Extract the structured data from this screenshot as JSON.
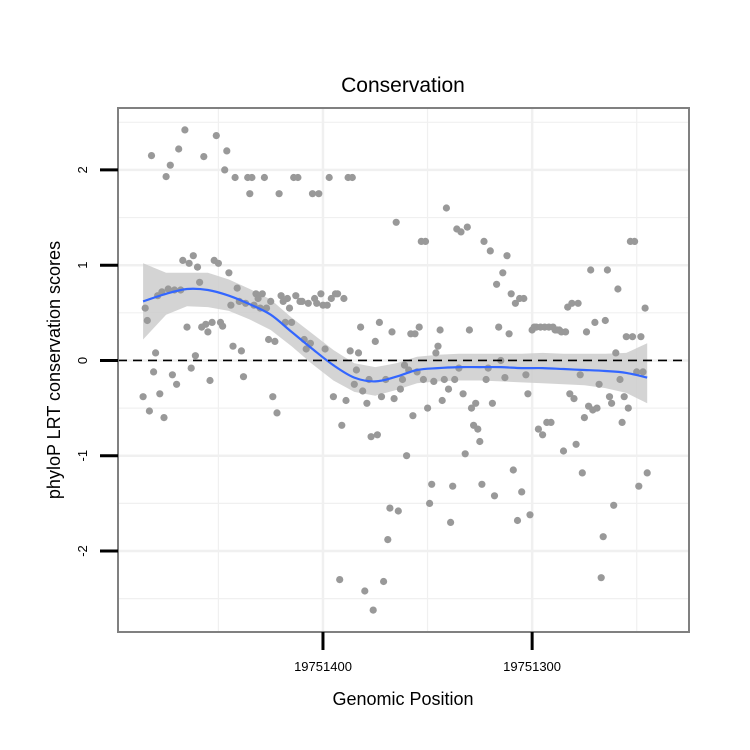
{
  "chart_data": {
    "type": "scatter",
    "title": "Conservation",
    "xlabel": "Genomic Position",
    "ylabel": "phyloP LRT conservation scores",
    "x_reversed": true,
    "xlim": [
      19751498,
      19751225
    ],
    "ylim": [
      -2.85,
      2.65
    ],
    "x_ticks": [
      19751400,
      19751300
    ],
    "x_tick_labels": [
      "19751400",
      "19751300"
    ],
    "y_ticks": [
      -2,
      -1,
      0,
      1,
      2
    ],
    "y_tick_labels": [
      "-2",
      "-1",
      "0",
      "1",
      "2"
    ],
    "grid": true,
    "legend": "none",
    "reference_line": {
      "y": 0,
      "style": "dashed"
    },
    "colors": {
      "points": "#999999",
      "smooth_line": "#3366ff",
      "ribbon": "#cccccc",
      "panel_border": "#808080",
      "grid": "#f0f0f0"
    },
    "series": [
      {
        "type": "points",
        "points": [
          [
            19751486,
            -0.38
          ],
          [
            19751485,
            0.55
          ],
          [
            19751484,
            0.42
          ],
          [
            19751483,
            -0.53
          ],
          [
            19751482,
            2.15
          ],
          [
            19751481,
            -0.12
          ],
          [
            19751480,
            0.08
          ],
          [
            19751479,
            0.68
          ],
          [
            19751478,
            -0.35
          ],
          [
            19751477,
            0.72
          ],
          [
            19751476,
            -0.6
          ],
          [
            19751475,
            1.93
          ],
          [
            19751474,
            0.75
          ],
          [
            19751473,
            2.05
          ],
          [
            19751472,
            -0.15
          ],
          [
            19751471,
            0.74
          ],
          [
            19751470,
            -0.25
          ],
          [
            19751469,
            2.22
          ],
          [
            19751468,
            0.74
          ],
          [
            19751467,
            1.05
          ],
          [
            19751466,
            2.42
          ],
          [
            19751465,
            0.35
          ],
          [
            19751464,
            1.02
          ],
          [
            19751463,
            -0.08
          ],
          [
            19751462,
            1.1
          ],
          [
            19751461,
            0.05
          ],
          [
            19751460,
            0.98
          ],
          [
            19751459,
            0.82
          ],
          [
            19751458,
            0.35
          ],
          [
            19751457,
            2.14
          ],
          [
            19751456,
            0.38
          ],
          [
            19751455,
            0.3
          ],
          [
            19751454,
            -0.21
          ],
          [
            19751453,
            0.4
          ],
          [
            19751452,
            1.05
          ],
          [
            19751451,
            2.36
          ],
          [
            19751450,
            1.02
          ],
          [
            19751449,
            0.4
          ],
          [
            19751448,
            0.36
          ],
          [
            19751447,
            2.0
          ],
          [
            19751446,
            2.2
          ],
          [
            19751445,
            0.92
          ],
          [
            19751444,
            0.58
          ],
          [
            19751443,
            0.15
          ],
          [
            19751442,
            1.92
          ],
          [
            19751441,
            0.76
          ],
          [
            19751440,
            0.62
          ],
          [
            19751439,
            0.1
          ],
          [
            19751438,
            -0.17
          ],
          [
            19751437,
            0.6
          ],
          [
            19751436,
            1.92
          ],
          [
            19751435,
            1.75
          ],
          [
            19751434,
            1.92
          ],
          [
            19751433,
            0.58
          ],
          [
            19751432,
            0.7
          ],
          [
            19751431,
            0.65
          ],
          [
            19751430,
            0.55
          ],
          [
            19751429,
            0.7
          ],
          [
            19751428,
            1.92
          ],
          [
            19751427,
            0.55
          ],
          [
            19751426,
            0.22
          ],
          [
            19751425,
            0.62
          ],
          [
            19751424,
            -0.38
          ],
          [
            19751423,
            0.2
          ],
          [
            19751422,
            -0.55
          ],
          [
            19751421,
            1.75
          ],
          [
            19751420,
            0.68
          ],
          [
            19751419,
            0.62
          ],
          [
            19751418,
            0.4
          ],
          [
            19751417,
            0.65
          ],
          [
            19751416,
            0.55
          ],
          [
            19751415,
            0.4
          ],
          [
            19751414,
            1.92
          ],
          [
            19751413,
            0.68
          ],
          [
            19751412,
            1.92
          ],
          [
            19751411,
            0.62
          ],
          [
            19751410,
            0.62
          ],
          [
            19751409,
            0.22
          ],
          [
            19751408,
            0.12
          ],
          [
            19751407,
            0.6
          ],
          [
            19751406,
            0.18
          ],
          [
            19751405,
            1.75
          ],
          [
            19751404,
            0.65
          ],
          [
            19751403,
            0.6
          ],
          [
            19751402,
            1.75
          ],
          [
            19751401,
            0.7
          ],
          [
            19751400,
            0.58
          ],
          [
            19751399,
            0.12
          ],
          [
            19751398,
            0.58
          ],
          [
            19751397,
            1.92
          ],
          [
            19751396,
            0.65
          ],
          [
            19751395,
            -0.38
          ],
          [
            19751394,
            0.7
          ],
          [
            19751393,
            0.7
          ],
          [
            19751392,
            -2.3
          ],
          [
            19751391,
            -0.68
          ],
          [
            19751390,
            0.65
          ],
          [
            19751389,
            -0.42
          ],
          [
            19751388,
            1.92
          ],
          [
            19751387,
            0.1
          ],
          [
            19751386,
            1.92
          ],
          [
            19751385,
            -0.25
          ],
          [
            19751384,
            -0.1
          ],
          [
            19751383,
            0.08
          ],
          [
            19751382,
            0.35
          ],
          [
            19751381,
            -0.32
          ],
          [
            19751380,
            -2.42
          ],
          [
            19751379,
            -0.45
          ],
          [
            19751378,
            -0.2
          ],
          [
            19751377,
            -0.8
          ],
          [
            19751376,
            -2.62
          ],
          [
            19751375,
            0.2
          ],
          [
            19751374,
            -0.78
          ],
          [
            19751373,
            0.4
          ],
          [
            19751372,
            -0.38
          ],
          [
            19751371,
            -2.32
          ],
          [
            19751370,
            -0.2
          ],
          [
            19751369,
            -1.88
          ],
          [
            19751368,
            -1.55
          ],
          [
            19751367,
            0.3
          ],
          [
            19751366,
            -0.4
          ],
          [
            19751365,
            1.45
          ],
          [
            19751364,
            -1.58
          ],
          [
            19751363,
            -0.3
          ],
          [
            19751362,
            -0.2
          ],
          [
            19751361,
            -0.05
          ],
          [
            19751360,
            -1.0
          ],
          [
            19751359,
            -0.1
          ],
          [
            19751358,
            0.28
          ],
          [
            19751357,
            -0.58
          ],
          [
            19751356,
            0.28
          ],
          [
            19751355,
            -0.12
          ],
          [
            19751354,
            0.35
          ],
          [
            19751353,
            1.25
          ],
          [
            19751352,
            -0.2
          ],
          [
            19751351,
            1.25
          ],
          [
            19751350,
            -0.5
          ],
          [
            19751349,
            -1.5
          ],
          [
            19751348,
            -1.3
          ],
          [
            19751347,
            -0.22
          ],
          [
            19751346,
            0.08
          ],
          [
            19751345,
            0.15
          ],
          [
            19751344,
            0.32
          ],
          [
            19751343,
            -0.42
          ],
          [
            19751342,
            -0.2
          ],
          [
            19751341,
            1.6
          ],
          [
            19751340,
            -0.3
          ],
          [
            19751339,
            -1.7
          ],
          [
            19751338,
            -1.32
          ],
          [
            19751337,
            -0.2
          ],
          [
            19751336,
            1.38
          ],
          [
            19751335,
            -0.08
          ],
          [
            19751334,
            1.35
          ],
          [
            19751333,
            -0.35
          ],
          [
            19751332,
            -0.98
          ],
          [
            19751331,
            1.4
          ],
          [
            19751330,
            0.32
          ],
          [
            19751329,
            -0.5
          ],
          [
            19751328,
            -0.68
          ],
          [
            19751327,
            -0.45
          ],
          [
            19751326,
            -0.72
          ],
          [
            19751325,
            -0.85
          ],
          [
            19751324,
            -1.3
          ],
          [
            19751323,
            1.25
          ],
          [
            19751322,
            -0.2
          ],
          [
            19751321,
            -0.08
          ],
          [
            19751320,
            1.15
          ],
          [
            19751319,
            -0.45
          ],
          [
            19751318,
            -1.42
          ],
          [
            19751317,
            0.8
          ],
          [
            19751316,
            0.35
          ],
          [
            19751315,
            0.0
          ],
          [
            19751314,
            0.92
          ],
          [
            19751313,
            -0.18
          ],
          [
            19751312,
            1.1
          ],
          [
            19751311,
            0.28
          ],
          [
            19751310,
            0.7
          ],
          [
            19751309,
            -1.15
          ],
          [
            19751308,
            0.6
          ],
          [
            19751307,
            -1.68
          ],
          [
            19751306,
            0.65
          ],
          [
            19751305,
            -1.38
          ],
          [
            19751304,
            0.65
          ],
          [
            19751303,
            -0.15
          ],
          [
            19751302,
            -0.35
          ],
          [
            19751301,
            -1.62
          ],
          [
            19751300,
            0.32
          ],
          [
            19751299,
            0.35
          ],
          [
            19751298,
            0.35
          ],
          [
            19751297,
            -0.72
          ],
          [
            19751296,
            0.35
          ],
          [
            19751295,
            -0.78
          ],
          [
            19751294,
            0.35
          ],
          [
            19751293,
            -0.65
          ],
          [
            19751292,
            0.35
          ],
          [
            19751291,
            -0.65
          ],
          [
            19751290,
            0.35
          ],
          [
            19751289,
            0.32
          ],
          [
            19751288,
            0.32
          ],
          [
            19751287,
            0.32
          ],
          [
            19751286,
            0.3
          ],
          [
            19751285,
            -0.95
          ],
          [
            19751284,
            0.3
          ],
          [
            19751283,
            0.56
          ],
          [
            19751282,
            -0.35
          ],
          [
            19751281,
            0.6
          ],
          [
            19751280,
            -0.4
          ],
          [
            19751279,
            -0.88
          ],
          [
            19751278,
            0.6
          ],
          [
            19751277,
            -0.15
          ],
          [
            19751276,
            -1.18
          ],
          [
            19751275,
            -0.6
          ],
          [
            19751274,
            0.3
          ],
          [
            19751273,
            -0.48
          ],
          [
            19751272,
            0.95
          ],
          [
            19751271,
            -0.52
          ],
          [
            19751270,
            0.4
          ],
          [
            19751269,
            -0.5
          ],
          [
            19751268,
            -0.25
          ],
          [
            19751267,
            -2.28
          ],
          [
            19751266,
            -1.85
          ],
          [
            19751265,
            0.42
          ],
          [
            19751264,
            0.95
          ],
          [
            19751263,
            -0.38
          ],
          [
            19751262,
            -0.45
          ],
          [
            19751261,
            -1.52
          ],
          [
            19751260,
            0.08
          ],
          [
            19751259,
            0.75
          ],
          [
            19751258,
            -0.2
          ],
          [
            19751257,
            -0.65
          ],
          [
            19751256,
            -0.38
          ],
          [
            19751255,
            0.25
          ],
          [
            19751254,
            -0.5
          ],
          [
            19751253,
            1.25
          ],
          [
            19751252,
            0.25
          ],
          [
            19751251,
            1.25
          ],
          [
            19751250,
            -0.12
          ],
          [
            19751249,
            -1.32
          ],
          [
            19751248,
            0.25
          ],
          [
            19751247,
            -0.12
          ],
          [
            19751246,
            0.55
          ],
          [
            19751245,
            -1.18
          ]
        ]
      },
      {
        "type": "smooth",
        "points": [
          [
            19751486,
            0.62,
            0.22,
            1.02
          ],
          [
            19751475,
            0.7,
            0.48,
            0.92
          ],
          [
            19751465,
            0.75,
            0.57,
            0.92
          ],
          [
            19751455,
            0.74,
            0.56,
            0.92
          ],
          [
            19751445,
            0.68,
            0.52,
            0.85
          ],
          [
            19751435,
            0.59,
            0.43,
            0.75
          ],
          [
            19751425,
            0.48,
            0.32,
            0.64
          ],
          [
            19751415,
            0.3,
            0.15,
            0.45
          ],
          [
            19751405,
            0.12,
            -0.04,
            0.28
          ],
          [
            19751395,
            -0.05,
            -0.21,
            0.11
          ],
          [
            19751385,
            -0.18,
            -0.33,
            -0.03
          ],
          [
            19751375,
            -0.22,
            -0.37,
            -0.07
          ],
          [
            19751365,
            -0.17,
            -0.31,
            -0.03
          ],
          [
            19751355,
            -0.1,
            -0.24,
            0.04
          ],
          [
            19751345,
            -0.08,
            -0.22,
            0.06
          ],
          [
            19751335,
            -0.07,
            -0.21,
            0.07
          ],
          [
            19751325,
            -0.07,
            -0.21,
            0.07
          ],
          [
            19751315,
            -0.07,
            -0.22,
            0.07
          ],
          [
            19751305,
            -0.08,
            -0.23,
            0.07
          ],
          [
            19751295,
            -0.08,
            -0.24,
            0.08
          ],
          [
            19751285,
            -0.09,
            -0.25,
            0.07
          ],
          [
            19751275,
            -0.1,
            -0.26,
            0.07
          ],
          [
            19751265,
            -0.11,
            -0.29,
            0.07
          ],
          [
            19751255,
            -0.13,
            -0.34,
            0.08
          ],
          [
            19751245,
            -0.18,
            -0.45,
            0.18
          ]
        ]
      }
    ]
  }
}
